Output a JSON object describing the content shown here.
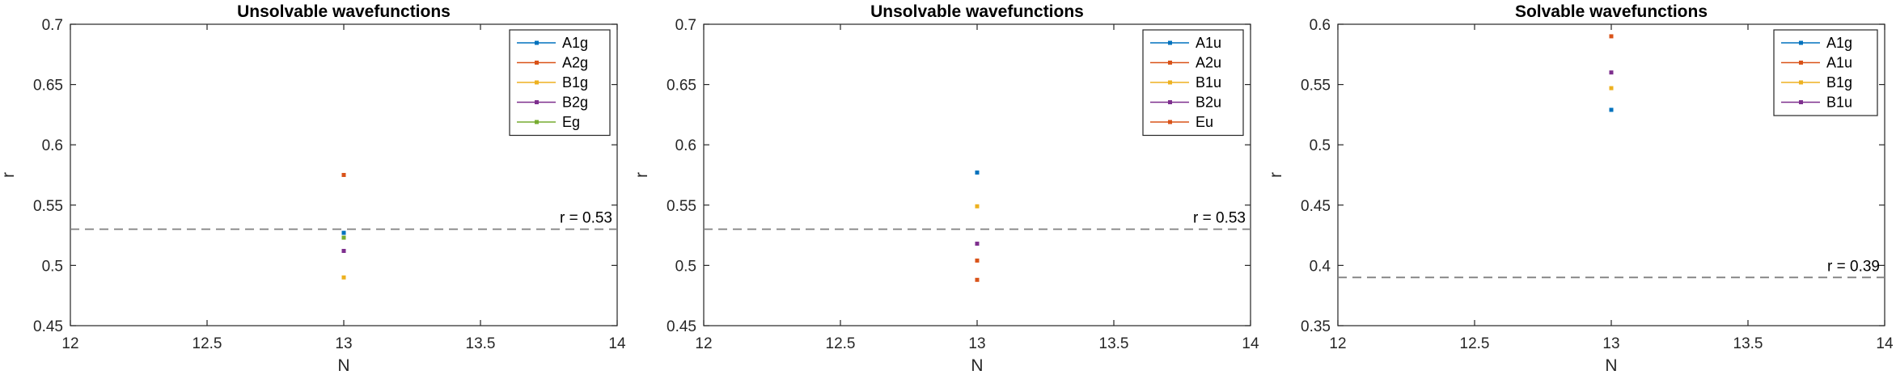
{
  "chart_data": [
    {
      "type": "scatter",
      "title": "Unsolvable wavefunctions",
      "xlabel": "N",
      "ylabel": "r",
      "xlim": [
        12,
        14
      ],
      "ylim": [
        0.45,
        0.7
      ],
      "xticks": [
        "12",
        "12.5",
        "13",
        "13.5",
        "14"
      ],
      "yticks": [
        "0.45",
        "0.5",
        "0.55",
        "0.6",
        "0.65",
        "0.7"
      ],
      "grid": false,
      "legend_position": "top-right",
      "series": [
        {
          "name": "A1g",
          "color": "#0072BD",
          "points": [
            {
              "x": 13,
              "y": 0.527
            }
          ]
        },
        {
          "name": "A2g",
          "color": "#D95319",
          "points": [
            {
              "x": 13,
              "y": 0.575
            }
          ]
        },
        {
          "name": "B1g",
          "color": "#EDB120",
          "points": [
            {
              "x": 13,
              "y": 0.49
            }
          ]
        },
        {
          "name": "B2g",
          "color": "#7E2F8E",
          "points": [
            {
              "x": 13,
              "y": 0.512
            }
          ]
        },
        {
          "name": "Eg",
          "color": "#77AC30",
          "points": [
            {
              "x": 13,
              "y": 0.523
            }
          ]
        }
      ],
      "reference_line": {
        "y": 0.53,
        "label": "r = 0.53",
        "color": "#808080",
        "style": "dashed"
      }
    },
    {
      "type": "scatter",
      "title": "Unsolvable wavefunctions",
      "xlabel": "N",
      "ylabel": "r",
      "xlim": [
        12,
        14
      ],
      "ylim": [
        0.45,
        0.7
      ],
      "xticks": [
        "12",
        "12.5",
        "13",
        "13.5",
        "14"
      ],
      "yticks": [
        "0.45",
        "0.5",
        "0.55",
        "0.6",
        "0.65",
        "0.7"
      ],
      "grid": false,
      "legend_position": "top-right",
      "series": [
        {
          "name": "A1u",
          "color": "#0072BD",
          "points": [
            {
              "x": 13,
              "y": 0.577
            }
          ]
        },
        {
          "name": "A2u",
          "color": "#D95319",
          "points": [
            {
              "x": 13,
              "y": 0.504
            }
          ]
        },
        {
          "name": "B1u",
          "color": "#EDB120",
          "points": [
            {
              "x": 13,
              "y": 0.549
            }
          ]
        },
        {
          "name": "B2u",
          "color": "#7E2F8E",
          "points": [
            {
              "x": 13,
              "y": 0.518
            }
          ]
        },
        {
          "name": "Eu",
          "color": "#D95319",
          "points": [
            {
              "x": 13,
              "y": 0.488
            }
          ]
        }
      ],
      "reference_line": {
        "y": 0.53,
        "label": "r = 0.53",
        "color": "#808080",
        "style": "dashed"
      }
    },
    {
      "type": "scatter",
      "title": "Solvable wavefunctions",
      "xlabel": "N",
      "ylabel": "r",
      "xlim": [
        12,
        14
      ],
      "ylim": [
        0.35,
        0.6
      ],
      "xticks": [
        "12",
        "12.5",
        "13",
        "13.5",
        "14"
      ],
      "yticks": [
        "0.35",
        "0.4",
        "0.45",
        "0.5",
        "0.55",
        "0.6"
      ],
      "grid": false,
      "legend_position": "top-right",
      "series": [
        {
          "name": "A1g",
          "color": "#0072BD",
          "points": [
            {
              "x": 13,
              "y": 0.529
            }
          ]
        },
        {
          "name": "A1u",
          "color": "#D95319",
          "points": [
            {
              "x": 13,
              "y": 0.59
            }
          ]
        },
        {
          "name": "B1g",
          "color": "#EDB120",
          "points": [
            {
              "x": 13,
              "y": 0.547
            }
          ]
        },
        {
          "name": "B1u",
          "color": "#7E2F8E",
          "points": [
            {
              "x": 13,
              "y": 0.56
            }
          ]
        }
      ],
      "reference_line": {
        "y": 0.39,
        "label": "r = 0.39",
        "color": "#808080",
        "style": "dashed"
      }
    }
  ]
}
